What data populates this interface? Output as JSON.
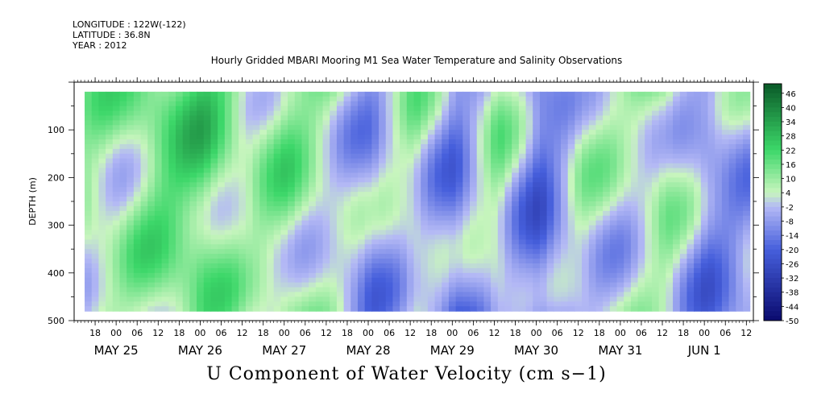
{
  "header": {
    "longitude": "LONGITUDE : 122W(-122)",
    "latitude": "LATITUDE : 36.8N",
    "year": "YEAR : 2012"
  },
  "chart_data": {
    "type": "heatmap",
    "title": "Hourly Gridded MBARI Mooring M1 Sea Water Temperature and Salinity Observations",
    "variable_label": "U Component of Water Velocity (cm s−1)",
    "ylabel": "DEPTH (m)",
    "y_axis": {
      "range": [
        0,
        500
      ],
      "inverted": true,
      "ticks": [
        100,
        200,
        300,
        400,
        500
      ]
    },
    "x_axis": {
      "start": "2012-05-24 12:00",
      "end": "2012-06-01 14:00",
      "hour_ticks": [
        "18",
        "00",
        "06",
        "12",
        "18",
        "00",
        "06",
        "12",
        "18",
        "00",
        "06",
        "12",
        "18",
        "00",
        "06",
        "12",
        "18",
        "00",
        "06",
        "12",
        "18",
        "00",
        "06",
        "12",
        "18",
        "00",
        "06",
        "12",
        "18",
        "00",
        "06",
        "12"
      ],
      "date_labels": [
        "MAY 25",
        "MAY 26",
        "MAY 27",
        "MAY 28",
        "MAY 29",
        "MAY 30",
        "MAY 31",
        "JUN  1"
      ]
    },
    "data_extent": {
      "time_start": "2012-05-24 15:00",
      "time_end": "2012-06-01 13:00",
      "depth_top": 20,
      "depth_bottom": 480
    },
    "colorbar": {
      "min": -50,
      "max": 50,
      "step": 2,
      "tick_labels": [
        "46",
        "40",
        "34",
        "28",
        "22",
        "16",
        "10",
        "4",
        "-2",
        "-8",
        "-14",
        "-20",
        "-26",
        "-32",
        "-38",
        "-44",
        "-50"
      ]
    },
    "colors": {
      "negative": "#8f9ce9",
      "near_zero": "#c3f0b4",
      "positive": "#36d56a",
      "strong_positive": "#1f9c45"
    },
    "approx_depth_mean_profile_cm_s": [
      {
        "time": "2012-05-25 00:00",
        "u": 10
      },
      {
        "time": "2012-05-25 12:00",
        "u": 18
      },
      {
        "time": "2012-05-26 00:00",
        "u": 22
      },
      {
        "time": "2012-05-26 12:00",
        "u": 8
      },
      {
        "time": "2012-05-27 00:00",
        "u": 14
      },
      {
        "time": "2012-05-27 12:00",
        "u": 6
      },
      {
        "time": "2012-05-28 00:00",
        "u": -6
      },
      {
        "time": "2012-05-28 12:00",
        "u": 8
      },
      {
        "time": "2012-05-29 00:00",
        "u": -10
      },
      {
        "time": "2012-05-29 12:00",
        "u": 10
      },
      {
        "time": "2012-05-30 00:00",
        "u": -14
      },
      {
        "time": "2012-05-30 12:00",
        "u": 6
      },
      {
        "time": "2012-05-31 00:00",
        "u": 4
      },
      {
        "time": "2012-05-31 12:00",
        "u": 10
      },
      {
        "time": "2012-06-01 00:00",
        "u": -8
      },
      {
        "time": "2012-06-01 12:00",
        "u": -2
      }
    ]
  }
}
